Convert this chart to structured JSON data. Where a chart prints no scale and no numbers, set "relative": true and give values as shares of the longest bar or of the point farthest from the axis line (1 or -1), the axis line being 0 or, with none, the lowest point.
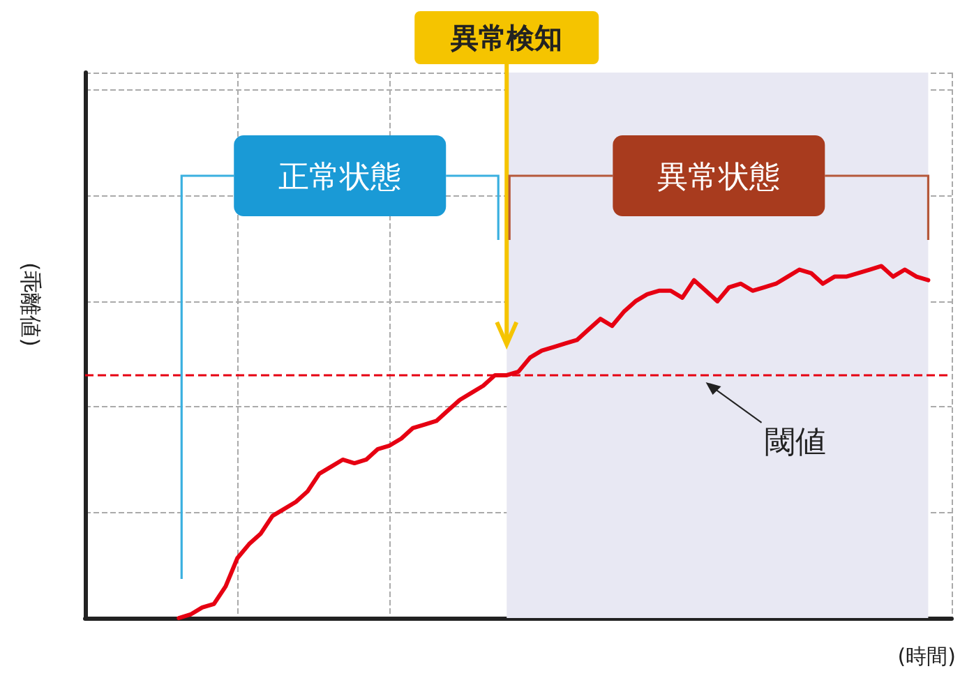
{
  "chart_data": {
    "type": "line",
    "relative": true,
    "ylabel": "(乖離値)",
    "xlabel": "(時間)",
    "grid": true,
    "categories": [
      null,
      null,
      null,
      null,
      null,
      null,
      null,
      null,
      null,
      null,
      null,
      null,
      null,
      null,
      null,
      null,
      null,
      null,
      null,
      null,
      null,
      null,
      null,
      null,
      null,
      null,
      null,
      null,
      null,
      null,
      null,
      null,
      null,
      null,
      null,
      null,
      null,
      null,
      null,
      null,
      null,
      null,
      null,
      null,
      null,
      null,
      null,
      null,
      null,
      null,
      null,
      null,
      null,
      null,
      null,
      null,
      null,
      null,
      null,
      null,
      null,
      null,
      null,
      null,
      null,
      null,
      null,
      null,
      null,
      null,
      null,
      null,
      null,
      null,
      null
    ],
    "series": [
      {
        "color": "#e60012",
        "values": [
          null,
          null,
          null,
          null,
          null,
          null,
          null,
          null,
          0,
          0.01,
          0.03,
          0.04,
          0.09,
          0.17,
          0.21,
          0.24,
          0.29,
          0.31,
          0.33,
          0.36,
          0.41,
          0.43,
          0.45,
          0.44,
          0.45,
          0.48,
          0.49,
          0.51,
          0.54,
          0.55,
          0.56,
          0.59,
          0.62,
          0.64,
          0.66,
          0.69,
          0.69,
          0.7,
          0.74,
          0.76,
          0.77,
          0.78,
          0.79,
          0.82,
          0.85,
          0.83,
          0.87,
          0.9,
          0.92,
          0.93,
          0.93,
          0.91,
          0.96,
          0.93,
          0.9,
          0.94,
          0.95,
          0.93,
          0.94,
          0.95,
          0.97,
          0.99,
          0.98,
          0.95,
          0.97,
          0.97,
          0.98,
          0.99,
          1,
          0.97,
          0.99,
          0.97,
          0.96,
          null,
          null
        ]
      }
    ],
    "ref_lines": [
      {
        "axis": "y",
        "value": 0.69,
        "label": "閾値",
        "color": "#e60012",
        "line_style": "dashed"
      }
    ],
    "annotations": [
      "異常検知",
      "正常状態",
      "異常状態"
    ]
  }
}
